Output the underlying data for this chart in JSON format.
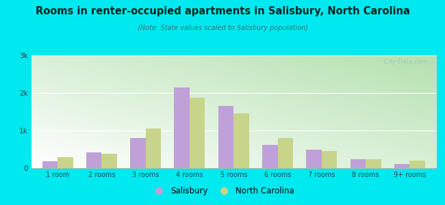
{
  "title": "Rooms in renter-occupied apartments in Salisbury, North Carolina",
  "subtitle": "(Note: State values scaled to Salisbury population)",
  "categories": [
    "1 room",
    "2 rooms",
    "3 rooms",
    "4 rooms",
    "5 rooms",
    "6 rooms",
    "7 rooms",
    "8 rooms",
    "9+ rooms"
  ],
  "salisbury": [
    180,
    420,
    800,
    2150,
    1650,
    620,
    490,
    230,
    110
  ],
  "north_carolina": [
    290,
    390,
    1050,
    1880,
    1450,
    800,
    450,
    240,
    200
  ],
  "salisbury_color": "#c0a0d8",
  "nc_color": "#c8d48a",
  "background_color": "#00e8f0",
  "title_color": "#003333",
  "subtitle_color": "#006666",
  "bar_width": 0.35,
  "ylim": [
    0,
    3000
  ],
  "yticks": [
    0,
    1000,
    2000,
    3000
  ],
  "ytick_labels": [
    "0",
    "1k",
    "2k",
    "3k"
  ],
  "legend_labels": [
    "Salisbury",
    "North Carolina"
  ],
  "watermark": "  City-Data.com"
}
